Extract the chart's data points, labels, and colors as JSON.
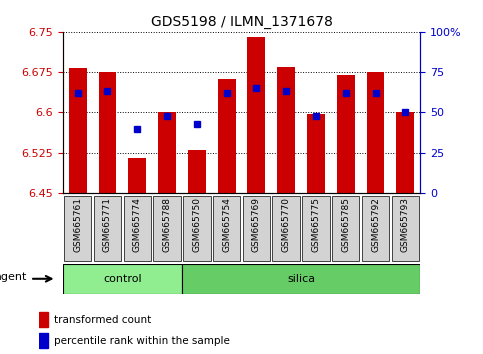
{
  "title": "GDS5198 / ILMN_1371678",
  "samples": [
    "GSM665761",
    "GSM665771",
    "GSM665774",
    "GSM665788",
    "GSM665750",
    "GSM665754",
    "GSM665769",
    "GSM665770",
    "GSM665775",
    "GSM665785",
    "GSM665792",
    "GSM665793"
  ],
  "groups": [
    "control",
    "control",
    "control",
    "control",
    "silica",
    "silica",
    "silica",
    "silica",
    "silica",
    "silica",
    "silica",
    "silica"
  ],
  "red_values": [
    6.682,
    6.675,
    6.515,
    6.6,
    6.53,
    6.662,
    6.74,
    6.684,
    6.597,
    6.67,
    6.675,
    6.6
  ],
  "blue_values_pct": [
    62,
    63,
    40,
    48,
    43,
    62,
    65,
    63,
    48,
    62,
    62,
    50
  ],
  "ymin": 6.45,
  "ymax": 6.75,
  "yticks_left": [
    6.45,
    6.525,
    6.6,
    6.675,
    6.75
  ],
  "yticks_right": [
    0,
    25,
    50,
    75,
    100
  ],
  "ytick_labels_right": [
    "0",
    "25",
    "50",
    "75",
    "100%"
  ],
  "bar_color": "#cc0000",
  "dot_color": "#0000cc",
  "control_color": "#90ee90",
  "silica_color": "#66cc66",
  "sample_box_color": "#d3d3d3",
  "agent_label": "agent",
  "legend_items": [
    "transformed count",
    "percentile rank within the sample"
  ],
  "n_control": 4,
  "n_silica": 8
}
